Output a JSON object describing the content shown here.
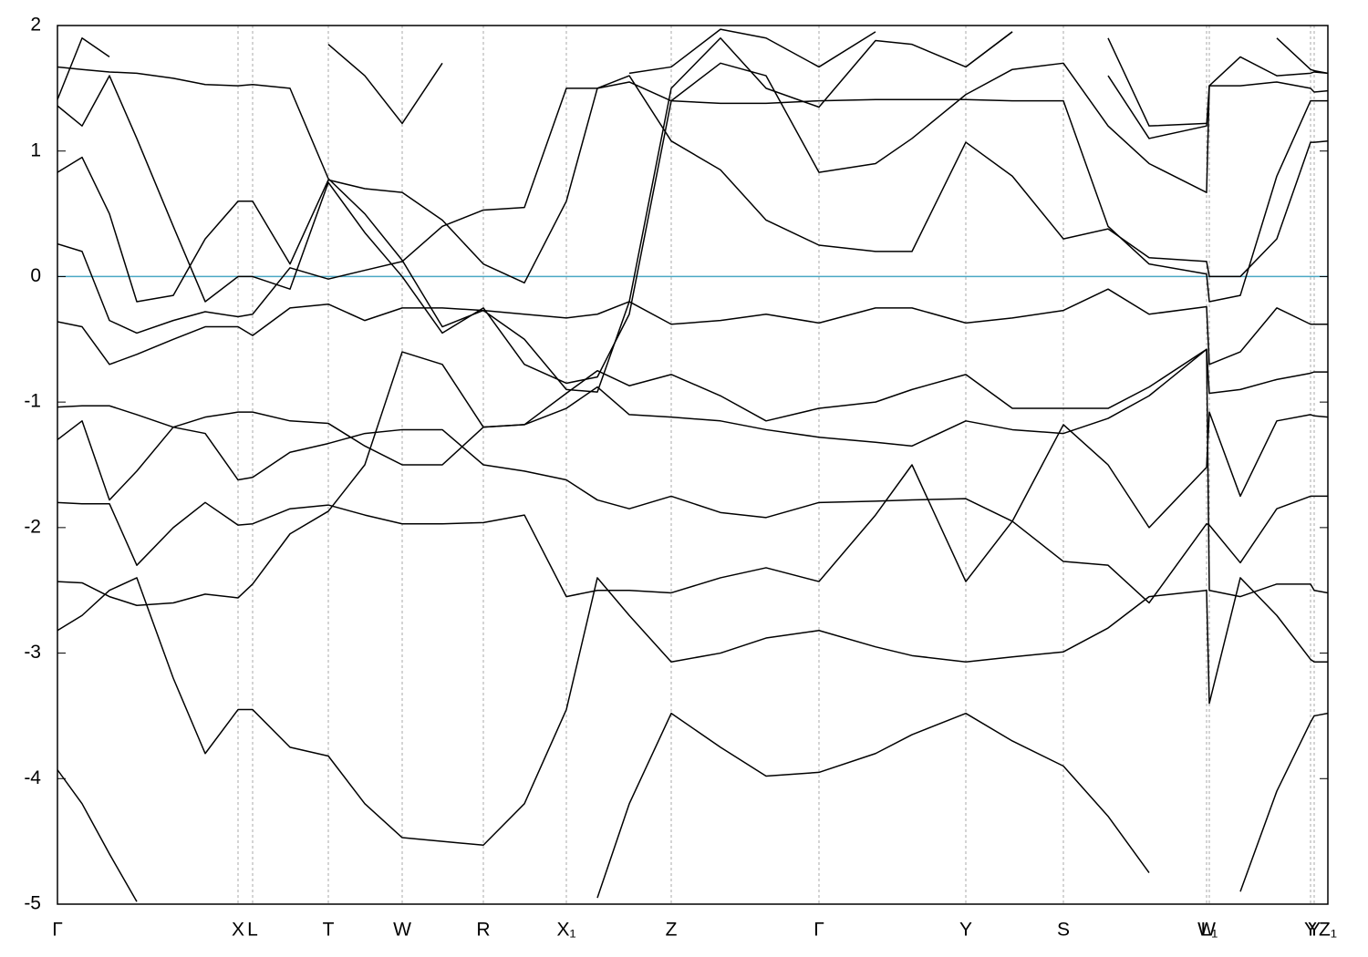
{
  "chart_data": {
    "type": "line",
    "x": [
      0,
      27,
      57,
      87,
      127,
      162,
      198,
      214,
      255,
      297,
      337,
      378,
      422,
      467,
      512,
      558,
      592,
      627,
      673,
      727,
      777,
      835,
      897,
      937,
      996,
      1047,
      1103,
      1152,
      1197,
      1260,
      1263,
      1297,
      1337,
      1374,
      1378,
      1393
    ],
    "xlim": [
      0,
      1393
    ],
    "ylim": [
      -5,
      2
    ],
    "yticks": [
      -5,
      -4,
      -3,
      -2,
      -1,
      0,
      1,
      2
    ],
    "xticks": [
      {
        "value": 0,
        "label": "Γ"
      },
      {
        "value": 198,
        "label": "X"
      },
      {
        "value": 214,
        "label": "L"
      },
      {
        "value": 297,
        "label": "T"
      },
      {
        "value": 378,
        "label": "W"
      },
      {
        "value": 467,
        "label": "R"
      },
      {
        "value": 558,
        "label": "X₁"
      },
      {
        "value": 673,
        "label": "Z"
      },
      {
        "value": 835,
        "label": "Γ"
      },
      {
        "value": 996,
        "label": "Y"
      },
      {
        "value": 1103,
        "label": "S"
      },
      {
        "value": 1260,
        "label": "W"
      },
      {
        "value": 1263,
        "label": "L₁"
      },
      {
        "value": 1374,
        "label": "Y"
      },
      {
        "value": 1378,
        "label": "Y"
      },
      {
        "value": 1393,
        "label": "Z₁"
      }
    ],
    "grid": true,
    "zero_line": 0,
    "zero_line_color": "#4aa8c4",
    "series": [
      {
        "color": "#000000",
        "values": [
          -3.93,
          -4.2,
          -4.6,
          -4.98,
          null,
          null,
          null,
          null,
          null,
          null,
          null,
          null,
          null,
          null,
          null,
          null,
          -4.95,
          -4.2,
          -3.48,
          -3.75,
          -3.98,
          -3.95,
          -3.8,
          -3.65,
          -3.48,
          -3.7,
          -3.9,
          -4.3,
          -4.75,
          null,
          null,
          -4.9,
          -4.1,
          -3.55,
          -3.5,
          -3.48
        ]
      },
      {
        "color": "#000000",
        "values": [
          -2.82,
          -2.7,
          -2.5,
          -2.4,
          -3.2,
          -3.8,
          -3.45,
          -3.45,
          -3.75,
          -3.82,
          -4.2,
          -4.47,
          -4.5,
          -4.53,
          -4.2,
          -3.45,
          -2.4,
          -2.7,
          -3.07,
          -3.0,
          -2.88,
          -2.82,
          -2.95,
          -3.02,
          -3.07,
          -3.03,
          -2.99,
          -2.8,
          -2.55,
          -2.5,
          -3.4,
          -2.4,
          -2.7,
          -3.05,
          -3.07,
          -3.07
        ]
      },
      {
        "color": "#000000",
        "values": [
          -2.43,
          -2.44,
          -2.55,
          -2.62,
          -2.6,
          -2.53,
          -2.56,
          -2.45,
          -2.05,
          -1.87,
          -1.5,
          -0.6,
          -0.7,
          -1.2,
          -1.18,
          -1.05,
          -0.88,
          -1.1,
          -1.12,
          -1.15,
          -1.22,
          -1.28,
          -1.32,
          -1.35,
          -1.15,
          -1.22,
          -1.25,
          -1.13,
          -0.95,
          -0.58,
          -2.5,
          -2.55,
          -2.45,
          -2.45,
          -2.5,
          -2.52
        ]
      },
      {
        "color": "#000000",
        "values": [
          -1.8,
          -1.81,
          -1.81,
          -2.3,
          -2.0,
          -1.8,
          -1.98,
          -1.97,
          -1.85,
          -1.82,
          -1.9,
          -1.97,
          -1.97,
          -1.96,
          -1.9,
          -2.55,
          -2.5,
          -2.5,
          -2.52,
          -2.4,
          -2.32,
          -2.43,
          -1.9,
          -1.5,
          -2.43,
          -1.95,
          -2.27,
          -2.3,
          -2.6,
          -1.97,
          -1.98,
          -2.28,
          -1.85,
          -1.75,
          -1.75,
          -1.75
        ]
      },
      {
        "color": "#000000",
        "values": [
          -1.3,
          -1.15,
          -1.78,
          -1.55,
          -1.2,
          -1.25,
          -1.62,
          -1.6,
          -1.4,
          -1.33,
          -1.25,
          -1.22,
          -1.22,
          -1.5,
          -1.55,
          -1.62,
          -1.78,
          -1.85,
          -1.75,
          -1.88,
          -1.92,
          -1.8,
          -1.79,
          -1.78,
          -1.77,
          -1.95,
          -1.18,
          -1.5,
          -2.0,
          -1.52,
          -1.08,
          -1.75,
          -1.15,
          -1.1,
          -1.11,
          -1.12
        ]
      },
      {
        "color": "#000000",
        "values": [
          -1.04,
          -1.03,
          -1.03,
          -1.1,
          -1.2,
          -1.12,
          -1.08,
          -1.08,
          -1.15,
          -1.17,
          -1.35,
          -1.5,
          -1.5,
          -1.2,
          -1.18,
          -0.93,
          -0.75,
          -0.87,
          -0.78,
          -0.95,
          -1.15,
          -1.05,
          -1.0,
          -0.9,
          -0.78,
          -1.05,
          -1.05,
          -1.05,
          -0.88,
          -0.58,
          -0.93,
          -0.9,
          -0.82,
          -0.77,
          -0.76,
          -0.76
        ]
      },
      {
        "color": "#000000",
        "values": [
          -0.36,
          -0.4,
          -0.7,
          -0.62,
          -0.5,
          -0.4,
          -0.4,
          -0.47,
          -0.25,
          -0.22,
          -0.35,
          -0.25,
          -0.25,
          -0.27,
          -0.3,
          -0.33,
          -0.3,
          -0.2,
          -0.38,
          -0.35,
          -0.3,
          -0.37,
          -0.25,
          -0.25,
          -0.37,
          -0.33,
          -0.27,
          -0.1,
          -0.3,
          -0.24,
          -0.7,
          -0.6,
          -0.25,
          -0.38,
          -0.38,
          -0.38
        ]
      },
      {
        "color": "#000000",
        "values": [
          0.26,
          0.2,
          -0.35,
          -0.45,
          -0.35,
          -0.28,
          -0.32,
          -0.3,
          0.07,
          -0.02,
          0.05,
          0.12,
          0.4,
          0.53,
          0.55,
          1.5,
          1.5,
          1.55,
          1.4,
          1.38,
          1.38,
          1.4,
          1.41,
          1.41,
          1.41,
          1.4,
          1.4,
          0.4,
          0.1,
          0.02,
          -0.2,
          -0.15,
          0.8,
          1.4,
          1.4,
          1.4
        ]
      },
      {
        "color": "#000000",
        "values": [
          0.83,
          0.95,
          0.5,
          -0.2,
          -0.15,
          0.3,
          0.6,
          0.6,
          0.1,
          0.77,
          0.7,
          0.67,
          0.45,
          0.1,
          -0.05,
          0.6,
          1.5,
          1.6,
          1.08,
          0.85,
          0.45,
          0.25,
          0.2,
          0.2,
          1.07,
          0.8,
          0.3,
          0.38,
          0.15,
          0.12,
          0.0,
          0.0,
          0.3,
          1.07,
          1.07,
          1.08
        ]
      },
      {
        "color": "#000000",
        "values": [
          1.36,
          1.2,
          1.6,
          1.1,
          0.4,
          -0.2,
          0.0,
          0.0,
          -0.1,
          0.75,
          0.35,
          0.0,
          -0.45,
          -0.25,
          -0.7,
          -0.85,
          -0.8,
          -0.3,
          1.4,
          1.7,
          1.6,
          0.83,
          0.9,
          1.1,
          1.45,
          1.65,
          1.7,
          1.2,
          0.9,
          0.67,
          1.52,
          1.52,
          1.55,
          1.5,
          1.47,
          1.48
        ]
      },
      {
        "color": "#000000",
        "values": [
          1.67,
          1.65,
          1.63,
          1.62,
          1.58,
          1.53,
          1.52,
          1.53,
          1.5,
          0.78,
          0.5,
          0.13,
          -0.4,
          -0.27,
          -0.5,
          -0.9,
          -0.92,
          -0.2,
          1.5,
          1.9,
          1.5,
          1.35,
          1.88,
          1.85,
          1.67,
          1.95,
          null,
          1.6,
          1.1,
          1.2,
          1.52,
          1.75,
          1.6,
          1.62,
          1.63,
          1.62
        ]
      },
      {
        "color": "#000000",
        "values": [
          1.41,
          1.9,
          1.75,
          null,
          null,
          null,
          null,
          null,
          null,
          1.85,
          1.6,
          1.22,
          1.7,
          null,
          null,
          null,
          null,
          1.62,
          1.67,
          1.97,
          1.9,
          1.67,
          1.95,
          null,
          1.67,
          1.95,
          null,
          1.9,
          1.2,
          1.22,
          null,
          null,
          1.9,
          1.65,
          1.64,
          1.62
        ]
      }
    ]
  }
}
